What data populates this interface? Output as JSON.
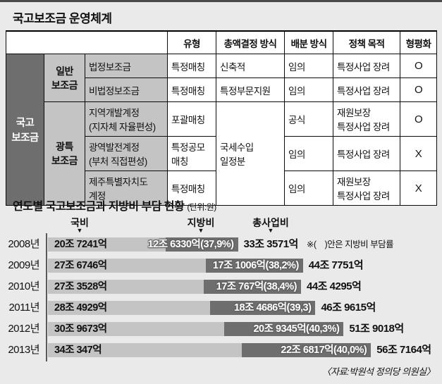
{
  "colors": {
    "page_bg": "#eaeaea",
    "bar_light_gray": "#c4c4c4",
    "bar_dark_gray": "#6e6e6e",
    "table_group_dark": "#6e6e6e",
    "table_cell_gray": "#c4c4c4",
    "top_rule": "#4a4a4a"
  },
  "subsidy_table": {
    "title": "국고보조금 운영체계",
    "col_headers": [
      "유형",
      "총액결정 방식",
      "배분 방식",
      "정책 목적",
      "형평화"
    ],
    "row_group": "국고\n보조금",
    "subgroups": {
      "general": "일반\n보조금",
      "special": "광특\n보조금"
    },
    "merged_total_method": "국세수입\n일정분",
    "rows": [
      {
        "name": "법정보조금",
        "type": "특정매칭",
        "total_method": "신축적",
        "allocation": "임의",
        "policy": "특정사업 장려",
        "equity": "O"
      },
      {
        "name": "비법정보조금",
        "type": "특정매칭",
        "total_method": "특정부문지원",
        "allocation": "임의",
        "policy": "특정사업 장려",
        "equity": "O"
      },
      {
        "name": "지역개발계정\n(지자체 자율편성)",
        "type": "포괄매칭",
        "allocation": "공식",
        "policy": "재원보장\n특정사업 장려",
        "equity": "O"
      },
      {
        "name": "광역발전계정\n(부처 직접편성)",
        "type": "특정공모\n매칭",
        "allocation": "임의",
        "policy": "특정사업 장려",
        "equity": "X"
      },
      {
        "name": "제주특별자치도\n계정",
        "type": "특정매칭",
        "allocation": "임의",
        "policy": "재원보장\n특정사업 장려",
        "equity": "X"
      }
    ]
  },
  "chart_data": {
    "type": "bar",
    "orientation": "horizontal",
    "stacked": true,
    "title": "연도별 국고보조금과 지방비 부담 현황",
    "unit_label": "(단위:원)",
    "col_labels": {
      "gov": "국비",
      "local": "지방비",
      "total": "총사업비"
    },
    "note": "※(　)안은 지방비 부담률",
    "source": "〈자료:박원석 정의당 의원실〉",
    "value_unit": "조 원 (trillion KRW)",
    "categories": [
      "2008년",
      "2009년",
      "2010년",
      "2011년",
      "2012년",
      "2013년"
    ],
    "series": [
      {
        "name": "국비",
        "values": [
          20.7241,
          27.6746,
          27.3528,
          28.4929,
          30.9673,
          34.0347
        ]
      },
      {
        "name": "지방비",
        "values": [
          12.633,
          17.1006,
          17.0767,
          18.4686,
          20.9345,
          22.6817
        ]
      },
      {
        "name": "총사업비",
        "values": [
          33.3571,
          44.7751,
          44.4295,
          46.9615,
          51.9018,
          56.7164
        ]
      }
    ],
    "rows": [
      {
        "year": "2008년",
        "gov": 20.7241,
        "gov_label": "20조 7241억",
        "local": 12.633,
        "local_label": "12조 6330억(37,9%)",
        "total": 33.3571,
        "total_label": "33조 3571억"
      },
      {
        "year": "2009년",
        "gov": 27.6746,
        "gov_label": "27조 6746억",
        "local": 17.1006,
        "local_label": "17조 1006억(38,2%)",
        "total": 44.7751,
        "total_label": "44조 7751억"
      },
      {
        "year": "2010년",
        "gov": 27.3528,
        "gov_label": "27조 3528억",
        "local": 17.0767,
        "local_label": "17조 767억(38,4%)",
        "total": 44.4295,
        "total_label": "44조 4295억"
      },
      {
        "year": "2011년",
        "gov": 28.4929,
        "gov_label": "28조 4929억",
        "local": 18.4686,
        "local_label": "18조 4686억(39,3)",
        "total": 46.9615,
        "total_label": "46조 9615억"
      },
      {
        "year": "2012년",
        "gov": 30.9673,
        "gov_label": "30조 9673억",
        "local": 20.9345,
        "local_label": "20조 9345억(40,3%)",
        "total": 51.9018,
        "total_label": "51조 9018억"
      },
      {
        "year": "2013년",
        "gov": 34.0347,
        "gov_label": "34조 347억",
        "local": 22.6817,
        "local_label": "22조 6817억(40,0%)",
        "total": 56.7164,
        "total_label": "56조 7164억"
      }
    ]
  }
}
